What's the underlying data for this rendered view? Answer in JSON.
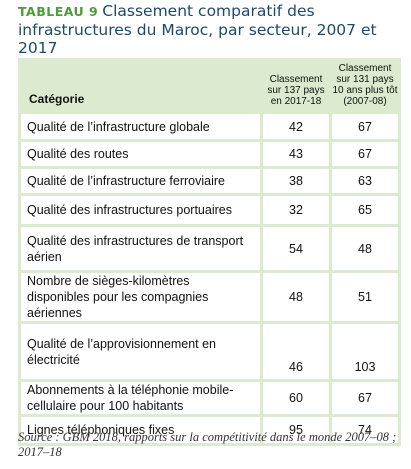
{
  "label": "TABLEAU 9",
  "title": "Classement comparatif des infrastructures du Maroc, par secteur, 2007 et 2017",
  "table": {
    "headers": [
      "Catégorie",
      "Classement sur 137 pays en 2017-18",
      "Classement sur 131 pays 10 ans plus tôt (2007-08)"
    ],
    "rows": [
      [
        "Qualité de l’infrastructure globale",
        42,
        67
      ],
      [
        "Qualité des routes",
        43,
        67
      ],
      [
        "Qualité de l’infrastructure ferroviaire",
        38,
        63
      ],
      [
        "Qualité des infrastructures portuaires",
        32,
        65
      ],
      [
        "Qualité des infrastructures de transport aérien",
        54,
        48
      ],
      [
        "Nombre de sièges-kilomètres disponibles pour les compagnies aériennes",
        48,
        51
      ],
      [
        "Qualité de l’approvisionnement en électricité",
        46,
        103
      ],
      [
        "Abonnements à la téléphonie mobile-cellulaire pour 100 habitants",
        60,
        67
      ],
      [
        "Lignes téléphoniques fixes",
        95,
        74
      ]
    ]
  },
  "source": "Source : GBM 2018, rapports sur la compétitivité dans le monde 2007–08 ; 2017–18"
}
